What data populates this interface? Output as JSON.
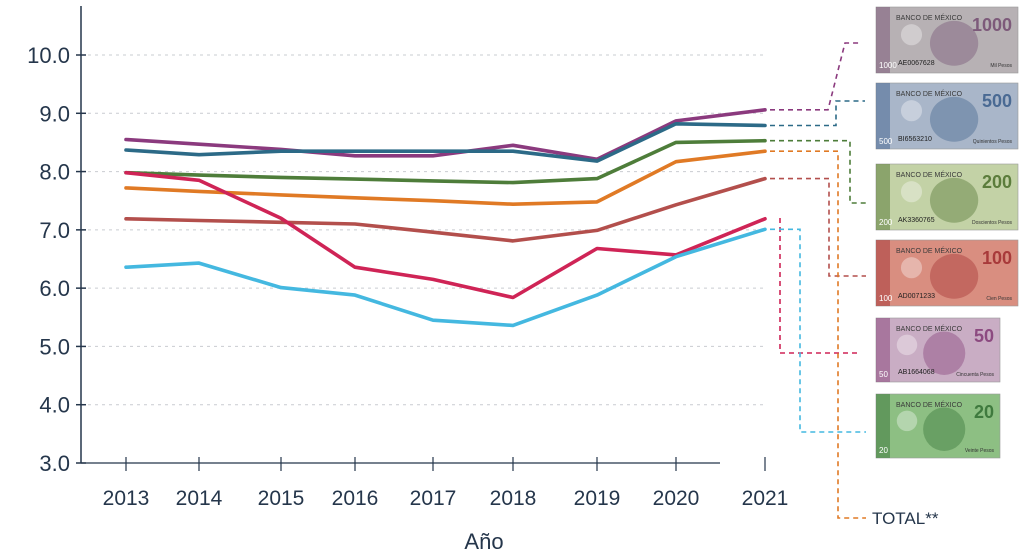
{
  "chart_data": {
    "type": "line",
    "xlabel": "Año",
    "ylabel": "",
    "ylim": [
      3.0,
      10.0
    ],
    "yticks": [
      "3.0",
      "4.0",
      "5.0",
      "6.0",
      "7.0",
      "8.0",
      "9.0",
      "10.0"
    ],
    "x": [
      "2013",
      "2014",
      "2015",
      "2016",
      "2017",
      "2018",
      "2019",
      "2020",
      "2021"
    ],
    "grid": "horizontal-dashed",
    "series": [
      {
        "key": "1000",
        "color": "#8b3a7e",
        "values": [
          8.55,
          8.47,
          8.38,
          8.27,
          8.27,
          8.45,
          8.21,
          8.87,
          9.06
        ]
      },
      {
        "key": "500",
        "color": "#2c6a87",
        "values": [
          8.37,
          8.29,
          8.35,
          8.35,
          8.35,
          8.35,
          8.18,
          8.82,
          8.79
        ]
      },
      {
        "key": "200",
        "color": "#4e7d3a",
        "values": [
          7.98,
          7.94,
          7.9,
          7.87,
          7.84,
          7.81,
          7.88,
          8.5,
          8.53
        ]
      },
      {
        "key": "total",
        "color": "#e07a25",
        "values": [
          7.72,
          7.66,
          7.6,
          7.55,
          7.5,
          7.44,
          7.48,
          8.17,
          8.35
        ]
      },
      {
        "key": "100",
        "color": "#b34f4c",
        "values": [
          7.19,
          7.16,
          7.13,
          7.1,
          6.96,
          6.81,
          6.99,
          7.43,
          7.88
        ]
      },
      {
        "key": "50",
        "color": "#cf2456",
        "values": [
          7.98,
          7.85,
          7.2,
          6.36,
          6.15,
          5.84,
          6.68,
          6.57,
          7.19
        ]
      },
      {
        "key": "20",
        "color": "#44b8e0",
        "values": [
          6.36,
          6.43,
          6.01,
          5.88,
          5.45,
          5.36,
          5.88,
          6.54,
          7.01
        ]
      }
    ],
    "annotations": [
      {
        "label": "TOTAL**",
        "series": "total"
      }
    ]
  },
  "banknotes": [
    {
      "value": "1000",
      "bank": "BANCO DE MÉXICO",
      "serial": "AE0067628",
      "words": "Mil Pesos",
      "tint": "#b7b1b4",
      "accent": "#7d5a7a"
    },
    {
      "value": "500",
      "bank": "BANCO DE MÉXICO",
      "serial": "BI6563210",
      "words": "Quinientos Pesos",
      "tint": "#a9b6c9",
      "accent": "#4a6a93"
    },
    {
      "value": "200",
      "bank": "BANCO DE MÉXICO",
      "serial": "AK3360765",
      "words": "Doscientos Pesos",
      "tint": "#c3d2a6",
      "accent": "#5c7d3c"
    },
    {
      "value": "100",
      "bank": "BANCO DE MÉXICO",
      "serial": "AD0071233",
      "words": "Cien Pesos",
      "tint": "#d98e80",
      "accent": "#a83a3a"
    },
    {
      "value": "50",
      "bank": "BANCO DE MÉXICO",
      "serial": "AB1664068",
      "words": "Cincuenta Pesos",
      "tint": "#c9adc4",
      "accent": "#8c4a80"
    },
    {
      "value": "20",
      "bank": "BANCO DE MÉXICO",
      "serial": "",
      "words": "Veinte Pesos",
      "tint": "#8dbf83",
      "accent": "#3f7a3e"
    }
  ]
}
